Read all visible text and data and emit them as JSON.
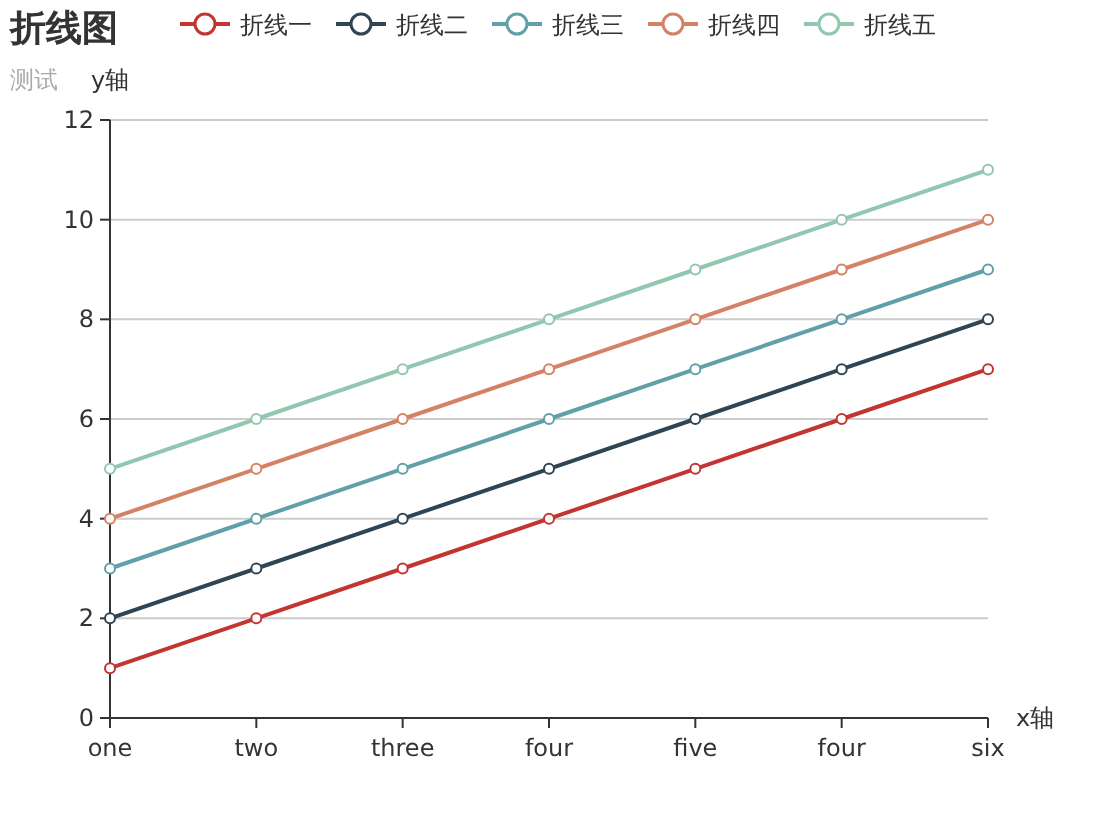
{
  "chart_data": {
    "type": "line",
    "title": "折线图",
    "subtitle": "测试",
    "xlabel": "x轴",
    "ylabel": "y轴",
    "categories": [
      "one",
      "two",
      "three",
      "four",
      "five",
      "four",
      "six"
    ],
    "series": [
      {
        "name": "折线一",
        "color": "#c23531",
        "values": [
          1,
          2,
          3,
          4,
          5,
          6,
          7
        ]
      },
      {
        "name": "折线二",
        "color": "#2f4554",
        "values": [
          2,
          3,
          4,
          5,
          6,
          7,
          8
        ]
      },
      {
        "name": "折线三",
        "color": "#61a0a8",
        "values": [
          3,
          4,
          5,
          6,
          7,
          8,
          9
        ]
      },
      {
        "name": "折线四",
        "color": "#d48265",
        "values": [
          4,
          5,
          6,
          7,
          8,
          9,
          10
        ]
      },
      {
        "name": "折线五",
        "color": "#91c7ae",
        "values": [
          5,
          6,
          7,
          8,
          9,
          10,
          11
        ]
      }
    ],
    "ylim": [
      0,
      12
    ],
    "yticks": [
      0,
      2,
      4,
      6,
      8,
      10,
      12
    ],
    "grid": "y",
    "legend": "top",
    "marker": "circle",
    "line_style": "solid"
  }
}
